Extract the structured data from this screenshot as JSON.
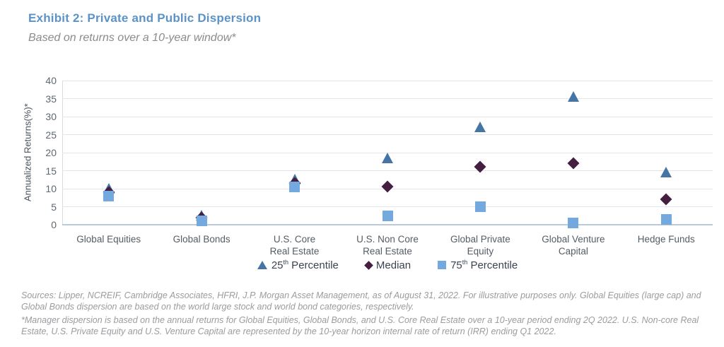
{
  "page": {
    "title": "Exhibit 2: Private and Public Dispersion",
    "subtitle": "Based on returns over a 10-year window*"
  },
  "chart_data": {
    "type": "scatter",
    "title": "Exhibit 2: Private and Public Dispersion",
    "subtitle": "Based on returns over a 10-year window*",
    "ylabel": "Annualized Returns(%)*",
    "xlabel": "",
    "ylim": [
      0,
      40
    ],
    "ytick_step": 5,
    "yticks": [
      0,
      5,
      10,
      15,
      20,
      25,
      30,
      35,
      40
    ],
    "grid": true,
    "legend_position": "bottom",
    "categories": [
      [
        "Global Equities"
      ],
      [
        "Global Bonds"
      ],
      [
        "U.S. Core",
        "Real Estate"
      ],
      [
        "U.S. Non Core",
        "Real Estate"
      ],
      [
        "Global Private",
        "Equity"
      ],
      [
        "Global Venture",
        "Capital"
      ],
      [
        "Hedge Funds"
      ]
    ],
    "series": [
      {
        "name": "25th Percentile",
        "marker": "triangle",
        "color": "#4575a5",
        "values": [
          10,
          2.5,
          12.5,
          18.5,
          27,
          35.5,
          14.5
        ]
      },
      {
        "name": "Median",
        "marker": "diamond",
        "color": "#441f40",
        "values": [
          9,
          2,
          11.5,
          10.5,
          16,
          17,
          7
        ]
      },
      {
        "name": "75th Percentile",
        "marker": "square",
        "color": "#73a9de",
        "values": [
          8,
          1,
          10.5,
          2.5,
          5,
          0.5,
          1.5
        ]
      }
    ],
    "legend": [
      {
        "marker": "triangle",
        "parts": [
          "25",
          "th",
          " Percentile"
        ]
      },
      {
        "marker": "diamond",
        "parts": [
          "Median",
          "",
          ""
        ]
      },
      {
        "marker": "square",
        "parts": [
          "75",
          "th",
          " Percentile"
        ]
      }
    ]
  },
  "footer": {
    "line1": "Sources: Lipper, NCREIF, Cambridge Associates, HFRI, J.P. Morgan Asset Management, as of August 31, 2022. For illustrative purposes only. Global Equities (large cap) and Global Bonds dispersion are based on the world large stock and world bond categories, respectively.",
    "line2": "*Manager dispersion is based on the annual returns for Global Equities, Global Bonds, and U.S. Core Real Estate over a 10-year period ending 2Q 2022. U.S. Non-core Real Estate, U.S. Private Equity and U.S. Venture Capital are represented by the 10-year horizon internal rate of return (IRR) ending Q1 2022."
  },
  "colors": {
    "title": "#5b93c9",
    "subtitle": "#8b8b8d",
    "triangle": "#4575a5",
    "diamond": "#441f40",
    "square": "#73a9de",
    "gridline": "#e4e4ea",
    "zero_axis": "#b9cbd9",
    "footer_text": "#9b9ba0"
  }
}
